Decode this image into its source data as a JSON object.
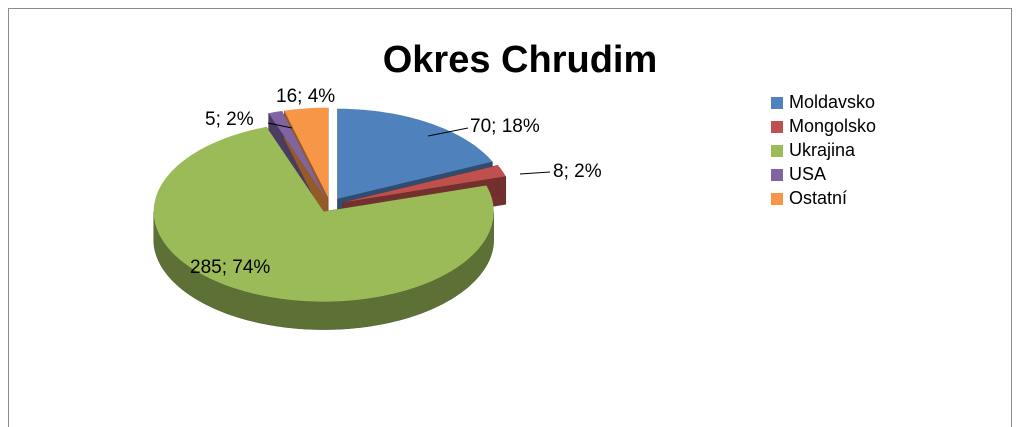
{
  "chart_data": {
    "type": "pie3d",
    "title": "Okres Chrudim",
    "categories": [
      "Moldavsko",
      "Mongolsko",
      "Ukrajina",
      "USA",
      "Ostatní"
    ],
    "values": [
      70,
      8,
      285,
      5,
      16
    ],
    "value_labels": [
      "70; 18%",
      "8; 2%",
      "285; 74%",
      "5; 2%",
      "16; 4%"
    ],
    "colors": [
      "#4f81bd",
      "#c0504d",
      "#9bbb59",
      "#8064a2",
      "#f79646"
    ],
    "legend": "right"
  }
}
